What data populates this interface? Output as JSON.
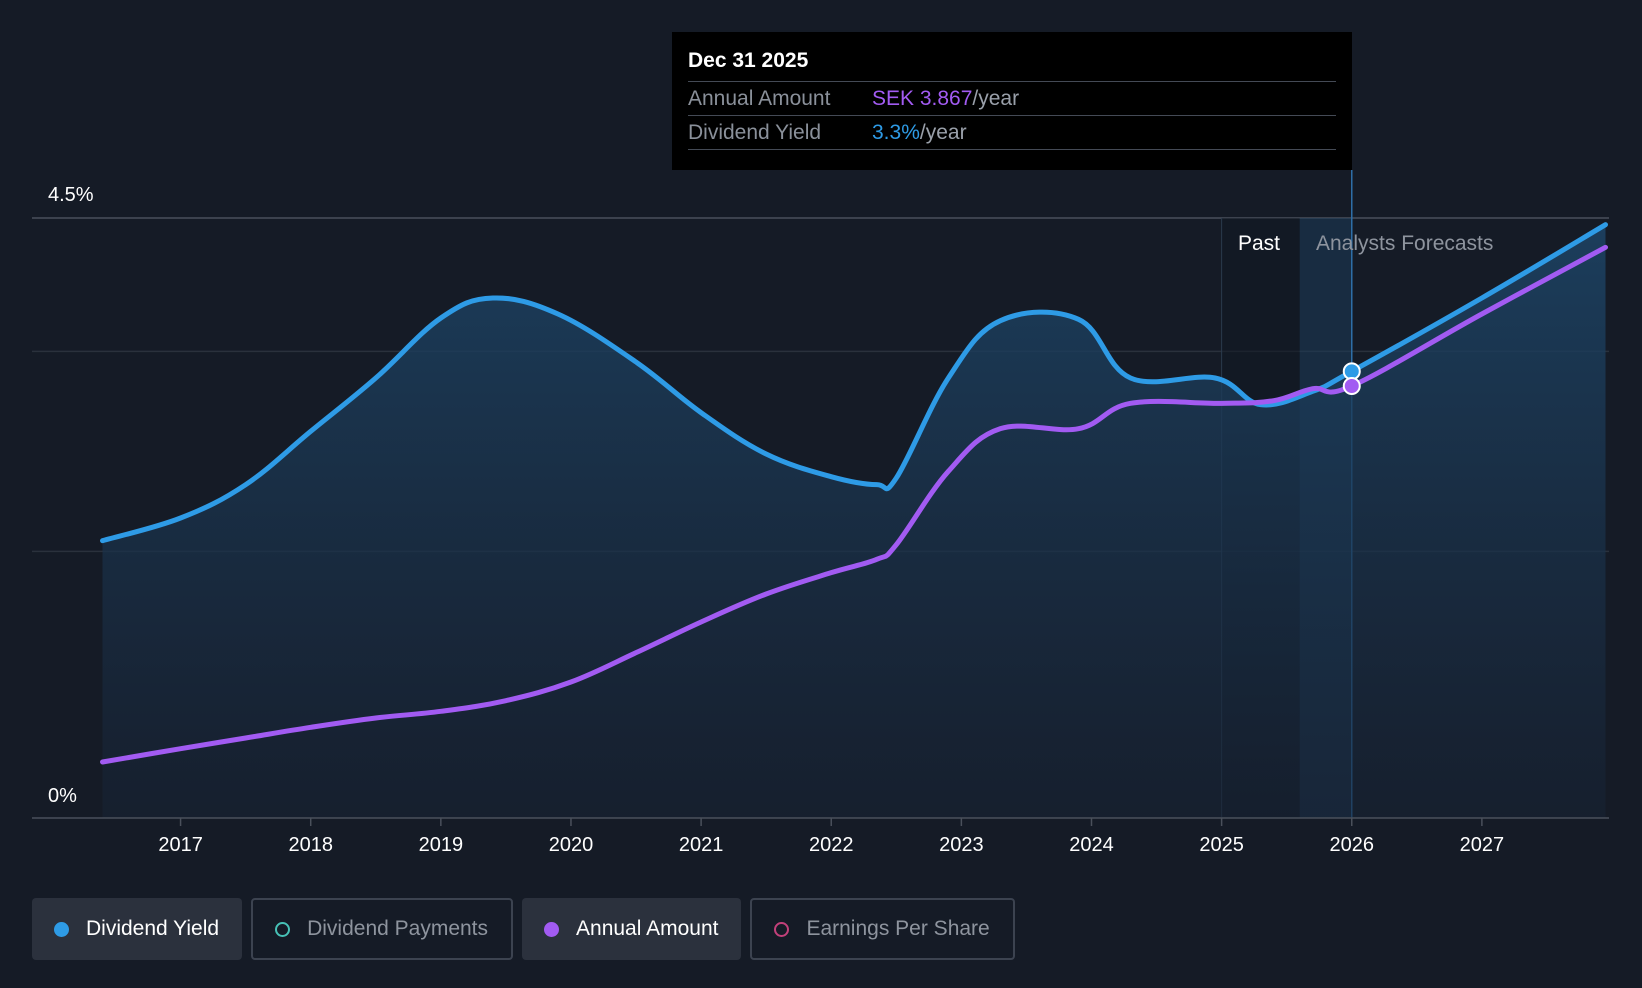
{
  "tooltip": {
    "date": "Dec 31 2025",
    "rows": [
      {
        "label": "Annual Amount",
        "value": "SEK 3.867",
        "unit": "/year"
      },
      {
        "label": "Dividend Yield",
        "value": "3.3%",
        "unit": "/year"
      }
    ]
  },
  "regions": {
    "past": "Past",
    "forecast": "Analysts Forecasts"
  },
  "legend": [
    {
      "label": "Dividend Yield",
      "color": "#2e9be6",
      "active": true
    },
    {
      "label": "Dividend Payments",
      "color": "#47c1b6",
      "active": false
    },
    {
      "label": "Annual Amount",
      "color": "#a25bf2",
      "active": true
    },
    {
      "label": "Earnings Per Share",
      "color": "#c2407a",
      "active": false
    }
  ],
  "chart_data": {
    "type": "line",
    "title": "",
    "xlabel": "",
    "ylabel": "",
    "ylim": [
      0,
      4.5
    ],
    "xlim": [
      2016.35,
      2027.95
    ],
    "y_tick_labels": [
      "0%",
      "4.5%"
    ],
    "x_ticks": [
      2017,
      2018,
      2019,
      2020,
      2021,
      2022,
      2023,
      2024,
      2025,
      2026,
      2027
    ],
    "past_range": [
      2025.0,
      2025.6
    ],
    "forecast_range": [
      2025.6,
      2026.0
    ],
    "cursor_x": 2026.0,
    "series": [
      {
        "name": "Dividend Yield",
        "color": "#2e9be6",
        "filled": true,
        "points": [
          [
            2016.4,
            2.08
          ],
          [
            2017.0,
            2.25
          ],
          [
            2017.5,
            2.5
          ],
          [
            2018.0,
            2.9
          ],
          [
            2018.5,
            3.3
          ],
          [
            2019.0,
            3.75
          ],
          [
            2019.4,
            3.9
          ],
          [
            2019.9,
            3.78
          ],
          [
            2020.5,
            3.42
          ],
          [
            2021.0,
            3.04
          ],
          [
            2021.5,
            2.73
          ],
          [
            2022.0,
            2.56
          ],
          [
            2022.35,
            2.5
          ],
          [
            2022.5,
            2.55
          ],
          [
            2022.9,
            3.3
          ],
          [
            2023.3,
            3.73
          ],
          [
            2023.9,
            3.74
          ],
          [
            2024.3,
            3.3
          ],
          [
            2024.95,
            3.3
          ],
          [
            2025.3,
            3.1
          ],
          [
            2025.7,
            3.2
          ],
          [
            2026.0,
            3.35
          ],
          [
            2027.0,
            3.9
          ],
          [
            2027.95,
            4.45
          ]
        ]
      },
      {
        "name": "Annual Amount",
        "color": "#a25bf2",
        "filled": false,
        "points": [
          [
            2016.4,
            0.42
          ],
          [
            2017.0,
            0.52
          ],
          [
            2017.5,
            0.6
          ],
          [
            2018.0,
            0.68
          ],
          [
            2018.5,
            0.75
          ],
          [
            2019.0,
            0.8
          ],
          [
            2019.5,
            0.88
          ],
          [
            2020.0,
            1.02
          ],
          [
            2020.5,
            1.24
          ],
          [
            2021.0,
            1.47
          ],
          [
            2021.5,
            1.68
          ],
          [
            2022.0,
            1.84
          ],
          [
            2022.35,
            1.94
          ],
          [
            2022.5,
            2.05
          ],
          [
            2022.9,
            2.6
          ],
          [
            2023.3,
            2.92
          ],
          [
            2023.9,
            2.92
          ],
          [
            2024.3,
            3.11
          ],
          [
            2025.0,
            3.11
          ],
          [
            2025.4,
            3.13
          ],
          [
            2025.7,
            3.22
          ],
          [
            2026.0,
            3.24
          ],
          [
            2027.0,
            3.78
          ],
          [
            2027.95,
            4.28
          ]
        ]
      }
    ]
  }
}
